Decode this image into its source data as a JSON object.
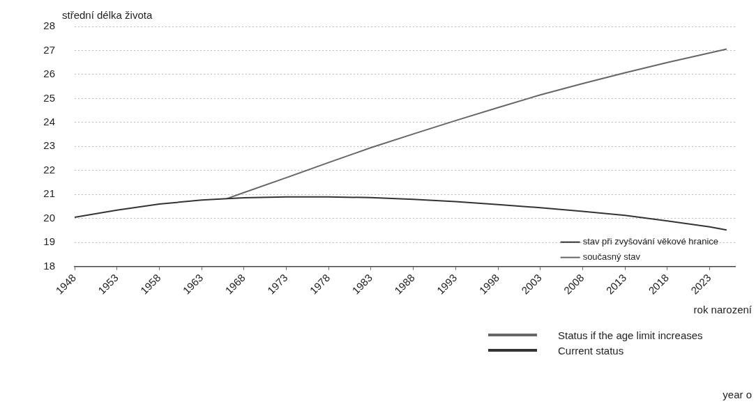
{
  "chart_data": {
    "type": "line",
    "ylabel": "střední délka života",
    "xlabel": "rok narození",
    "xlim": [
      1948,
      2026
    ],
    "xticks": [
      1948,
      1953,
      1958,
      1963,
      1968,
      1973,
      1978,
      1983,
      1988,
      1993,
      1998,
      2003,
      2008,
      2013,
      2018,
      2023
    ],
    "ylim": [
      18,
      28
    ],
    "yticks": [
      18,
      19,
      20,
      21,
      22,
      23,
      24,
      25,
      26,
      27,
      28
    ],
    "grid": "y",
    "legend": "bottom right",
    "marker": "none",
    "series": [
      {
        "name": "stav při zvyšování věkové hranice",
        "color": "#333333",
        "x": [
          1948,
          1953,
          1958,
          1963,
          1966,
          1968,
          1973,
          1978,
          1983,
          1988,
          1993,
          1998,
          2003,
          2008,
          2013,
          2018,
          2023,
          2025
        ],
        "values": [
          20.05,
          20.35,
          20.6,
          20.77,
          20.83,
          20.86,
          20.9,
          20.9,
          20.87,
          20.8,
          20.7,
          20.58,
          20.45,
          20.3,
          20.13,
          19.9,
          19.65,
          19.52
        ]
      },
      {
        "name": "současný stav",
        "color": "#666666",
        "x": [
          1966,
          1968,
          1973,
          1978,
          1983,
          1988,
          1993,
          1998,
          2003,
          2008,
          2013,
          2018,
          2023,
          2025
        ],
        "values": [
          20.83,
          21.08,
          21.7,
          22.33,
          22.95,
          23.52,
          24.08,
          24.62,
          25.15,
          25.62,
          26.07,
          26.5,
          26.9,
          27.06
        ]
      }
    ],
    "annotations": [
      "Status if the age limit increases",
      "Current status",
      "year o"
    ]
  }
}
